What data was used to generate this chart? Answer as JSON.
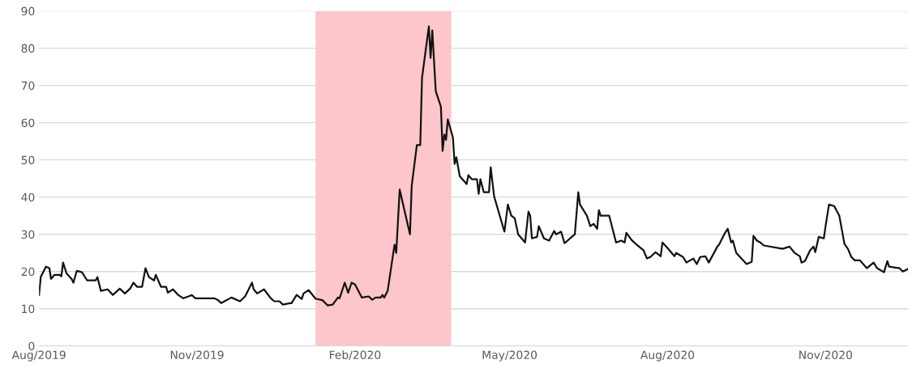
{
  "chart_data": {
    "type": "line",
    "x": [
      "2019-08-01",
      "2019-08-02",
      "2019-08-05",
      "2019-08-07",
      "2019-08-08",
      "2019-08-10",
      "2019-08-13",
      "2019-08-14",
      "2019-08-15",
      "2019-08-17",
      "2019-08-20",
      "2019-08-21",
      "2019-08-23",
      "2019-08-26",
      "2019-08-29",
      "2019-09-03",
      "2019-09-04",
      "2019-09-06",
      "2019-09-10",
      "2019-09-13",
      "2019-09-17",
      "2019-09-20",
      "2019-09-23",
      "2019-09-25",
      "2019-09-27",
      "2019-09-30",
      "2019-10-02",
      "2019-10-04",
      "2019-10-07",
      "2019-10-08",
      "2019-10-11",
      "2019-10-14",
      "2019-10-15",
      "2019-10-18",
      "2019-10-21",
      "2019-10-24",
      "2019-10-27",
      "2019-10-29",
      "2019-10-31",
      "2019-11-11",
      "2019-11-13",
      "2019-11-15",
      "2019-11-21",
      "2019-11-26",
      "2019-11-29",
      "2019-12-03",
      "2019-12-04",
      "2019-12-06",
      "2019-12-10",
      "2019-12-14",
      "2019-12-16",
      "2019-12-19",
      "2019-12-21",
      "2019-12-25",
      "2019-12-26",
      "2019-12-29",
      "2020-01-01",
      "2020-01-02",
      "2020-01-05",
      "2020-01-09",
      "2020-01-13",
      "2020-01-16",
      "2020-01-19",
      "2020-01-22",
      "2020-01-23",
      "2020-01-26",
      "2020-01-28",
      "2020-01-30",
      "2020-02-01",
      "2020-02-05",
      "2020-02-09",
      "2020-02-11",
      "2020-02-13",
      "2020-02-16",
      "2020-02-17",
      "2020-02-18",
      "2020-02-20",
      "2020-02-24",
      "2020-02-25",
      "2020-02-27",
      "2020-03-04",
      "2020-03-05",
      "2020-03-08",
      "2020-03-10",
      "2020-03-11",
      "2020-03-15",
      "2020-03-16",
      "2020-03-17",
      "2020-03-19",
      "2020-03-22",
      "2020-03-23",
      "2020-03-24",
      "2020-03-25",
      "2020-03-26",
      "2020-03-29",
      "2020-03-30",
      "2020-03-31",
      "2020-04-02",
      "2020-04-06",
      "2020-04-07",
      "2020-04-09",
      "2020-04-12",
      "2020-04-13",
      "2020-04-14",
      "2020-04-16",
      "2020-04-19",
      "2020-04-20",
      "2020-04-22",
      "2020-04-28",
      "2020-04-30",
      "2020-05-02",
      "2020-05-04",
      "2020-05-06",
      "2020-05-10",
      "2020-05-12",
      "2020-05-13",
      "2020-05-14",
      "2020-05-17",
      "2020-05-18",
      "2020-05-21",
      "2020-05-24",
      "2020-05-27",
      "2020-05-28",
      "2020-05-31",
      "2020-06-02",
      "2020-06-08",
      "2020-06-10",
      "2020-06-11",
      "2020-06-15",
      "2020-06-17",
      "2020-06-19",
      "2020-06-21",
      "2020-06-22",
      "2020-06-23",
      "2020-06-28",
      "2020-07-02",
      "2020-07-05",
      "2020-07-07",
      "2020-07-08",
      "2020-07-11",
      "2020-07-14",
      "2020-07-18",
      "2020-07-20",
      "2020-07-22",
      "2020-07-25",
      "2020-07-28",
      "2020-07-29",
      "2020-08-01",
      "2020-08-05",
      "2020-08-06",
      "2020-08-10",
      "2020-08-12",
      "2020-08-16",
      "2020-08-18",
      "2020-08-20",
      "2020-08-23",
      "2020-08-25",
      "2020-08-30",
      "2020-08-31",
      "2020-09-03",
      "2020-09-05",
      "2020-09-07",
      "2020-09-08",
      "2020-09-10",
      "2020-09-16",
      "2020-09-19",
      "2020-09-20",
      "2020-09-22",
      "2020-09-24",
      "2020-09-26",
      "2020-10-07",
      "2020-10-11",
      "2020-10-14",
      "2020-10-17",
      "2020-10-18",
      "2020-10-20",
      "2020-10-23",
      "2020-10-25",
      "2020-10-26",
      "2020-10-28",
      "2020-10-31",
      "2020-11-01",
      "2020-11-03",
      "2020-11-06",
      "2020-11-09",
      "2020-11-12",
      "2020-11-14",
      "2020-11-16",
      "2020-11-18",
      "2020-11-21",
      "2020-11-25",
      "2020-11-29",
      "2020-12-01",
      "2020-12-05",
      "2020-12-07",
      "2020-12-08",
      "2020-12-14",
      "2020-12-16",
      "2020-12-19"
    ],
    "series": [
      {
        "color": "#111111",
        "values": [
          13.7,
          18.5,
          21.3,
          20.9,
          18,
          19.1,
          19.1,
          18.7,
          22.4,
          19.5,
          18,
          17,
          20.2,
          19.8,
          17.6,
          17.6,
          18.5,
          14.8,
          15.2,
          13.7,
          15.4,
          14.1,
          15.4,
          17,
          15.9,
          15.9,
          20.9,
          18.5,
          17.6,
          19.1,
          15.9,
          15.9,
          14.3,
          15.2,
          13.7,
          12.8,
          13.3,
          13.7,
          12.8,
          12.8,
          12.4,
          11.5,
          13,
          12,
          13.3,
          17,
          15.2,
          14.1,
          15.2,
          12.8,
          12,
          12,
          11.1,
          11.5,
          11.5,
          13.7,
          12.6,
          14.1,
          15,
          12.7,
          12.3,
          10.9,
          11.1,
          13,
          12.8,
          17,
          14.3,
          17,
          16.5,
          13,
          13.3,
          12.4,
          13,
          13,
          13.7,
          13,
          14.8,
          27.2,
          25,
          42,
          30,
          43,
          54,
          54,
          72,
          85.9,
          77.4,
          84.8,
          68.5,
          64.3,
          52.4,
          56.8,
          55.4,
          60.9,
          56,
          48.9,
          50.7,
          45.6,
          43.5,
          45.9,
          44.8,
          44.8,
          40.9,
          44.8,
          41.3,
          41.3,
          48,
          40.2,
          30.7,
          38,
          35,
          34.3,
          30,
          27.8,
          36.1,
          35,
          28.9,
          29.3,
          32.2,
          28.9,
          28.3,
          30.9,
          30,
          30.7,
          27.6,
          30,
          41.3,
          38,
          35,
          32.2,
          32.8,
          31.5,
          36.5,
          35,
          35,
          27.8,
          28.3,
          27.8,
          30.4,
          28.5,
          27.2,
          25.7,
          23.5,
          23.9,
          25.2,
          24.1,
          27.8,
          26.3,
          24.1,
          25,
          23.9,
          22.4,
          23.5,
          22,
          23.9,
          24.1,
          22.4,
          26.7,
          27.2,
          30,
          31.5,
          27.8,
          28.3,
          25,
          22,
          22.6,
          29.6,
          28.3,
          27.8,
          27,
          26.1,
          26.7,
          25,
          24.1,
          22.4,
          22.8,
          25.7,
          26.7,
          25.2,
          29.3,
          28.9,
          32.2,
          38,
          37.6,
          35,
          27.4,
          26.1,
          23.9,
          23,
          23,
          20.9,
          22.4,
          20.9,
          19.8,
          22.8,
          21.3,
          20.9,
          20,
          20.7
        ]
      }
    ],
    "xlim": [
      "2019-08-01",
      "2020-12-19"
    ],
    "xticks": [
      {
        "value": "2019-08-01",
        "label": "Aug/2019"
      },
      {
        "value": "2019-11-01",
        "label": "Nov/2019"
      },
      {
        "value": "2020-02-01",
        "label": "Feb/2020"
      },
      {
        "value": "2020-05-01",
        "label": "May/2020"
      },
      {
        "value": "2020-08-01",
        "label": "Aug/2020"
      },
      {
        "value": "2020-11-01",
        "label": "Nov/2020"
      }
    ],
    "ylim": [
      0,
      90
    ],
    "yticks": [
      0,
      10,
      20,
      30,
      40,
      50,
      60,
      70,
      80,
      90
    ],
    "bands": [
      {
        "axis": "x",
        "from": "2020-01-09",
        "to": "2020-03-28",
        "color": "#fcc6ca"
      }
    ],
    "grid": "y",
    "marker": "none",
    "line_style": "solid"
  }
}
